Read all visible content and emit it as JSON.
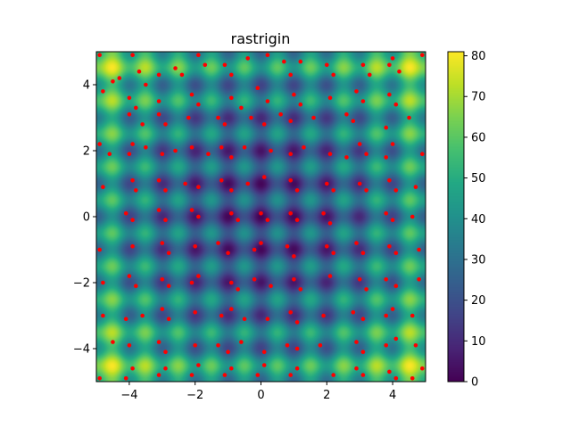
{
  "chart_data": {
    "type": "heatmap",
    "title": "rastrigin",
    "function": "rastrigin",
    "xlim": [
      -5,
      5
    ],
    "ylim": [
      -5,
      5
    ],
    "x_ticks": [
      -4,
      -2,
      0,
      2,
      4
    ],
    "x_tick_labels": [
      "−4",
      "−2",
      "0",
      "2",
      "4"
    ],
    "y_ticks": [
      -4,
      -2,
      0,
      2,
      4
    ],
    "y_tick_labels": [
      "−4",
      "−2",
      "0",
      "2",
      "4"
    ],
    "colormap": "viridis",
    "colorbar": {
      "range": [
        0,
        81
      ],
      "ticks": [
        0,
        10,
        20,
        30,
        40,
        50,
        60,
        70,
        80
      ],
      "tick_labels": [
        "0",
        "10",
        "20",
        "30",
        "40",
        "50",
        "60",
        "70",
        "80"
      ]
    },
    "grid": false,
    "scatter": {
      "name": "",
      "color": "#ff0000",
      "points": [
        [
          -4.9,
          4.9
        ],
        [
          -4.5,
          4.1
        ],
        [
          -4.3,
          4.2
        ],
        [
          -3.9,
          4.9
        ],
        [
          -3.7,
          4.4
        ],
        [
          -3.5,
          4.0
        ],
        [
          -3.1,
          4.3
        ],
        [
          -2.6,
          4.5
        ],
        [
          -2.4,
          4.3
        ],
        [
          -1.9,
          4.9
        ],
        [
          -1.7,
          4.6
        ],
        [
          -1.1,
          4.6
        ],
        [
          -0.9,
          4.3
        ],
        [
          -0.4,
          4.8
        ],
        [
          0.2,
          4.9
        ],
        [
          0.7,
          4.7
        ],
        [
          0.9,
          4.3
        ],
        [
          1.2,
          4.7
        ],
        [
          2.0,
          4.6
        ],
        [
          2.2,
          4.3
        ],
        [
          3.1,
          4.6
        ],
        [
          3.3,
          4.3
        ],
        [
          3.9,
          4.6
        ],
        [
          4.0,
          4.8
        ],
        [
          4.2,
          4.4
        ],
        [
          4.9,
          4.9
        ],
        [
          -4.8,
          3.8
        ],
        [
          -4.0,
          3.6
        ],
        [
          -3.8,
          3.3
        ],
        [
          -3.1,
          3.5
        ],
        [
          -2.1,
          3.7
        ],
        [
          -1.9,
          3.4
        ],
        [
          -0.9,
          3.6
        ],
        [
          -0.6,
          3.3
        ],
        [
          -0.1,
          3.9
        ],
        [
          0.2,
          3.5
        ],
        [
          1.0,
          3.7
        ],
        [
          1.2,
          3.4
        ],
        [
          2.1,
          3.6
        ],
        [
          2.9,
          3.8
        ],
        [
          3.1,
          3.5
        ],
        [
          3.9,
          3.7
        ],
        [
          4.1,
          3.4
        ],
        [
          -4.0,
          3.1
        ],
        [
          -3.6,
          2.8
        ],
        [
          -3.1,
          3.1
        ],
        [
          -2.9,
          2.8
        ],
        [
          -2.2,
          3.0
        ],
        [
          -1.3,
          3.0
        ],
        [
          -1.1,
          2.8
        ],
        [
          -0.3,
          3.0
        ],
        [
          0.1,
          2.8
        ],
        [
          0.6,
          3.1
        ],
        [
          0.9,
          2.9
        ],
        [
          1.6,
          3.0
        ],
        [
          2.6,
          3.1
        ],
        [
          2.8,
          2.9
        ],
        [
          3.8,
          2.7
        ],
        [
          4.5,
          3.0
        ],
        [
          -4.9,
          2.2
        ],
        [
          -4.6,
          1.9
        ],
        [
          -4.0,
          1.9
        ],
        [
          -3.9,
          2.2
        ],
        [
          -3.5,
          2.1
        ],
        [
          -3.0,
          1.9
        ],
        [
          -2.6,
          2.0
        ],
        [
          -2.1,
          2.1
        ],
        [
          -1.6,
          1.9
        ],
        [
          -1.2,
          2.1
        ],
        [
          -0.9,
          1.8
        ],
        [
          -0.5,
          2.1
        ],
        [
          0.3,
          2.0
        ],
        [
          0.9,
          1.9
        ],
        [
          1.3,
          2.1
        ],
        [
          2.1,
          1.9
        ],
        [
          2.6,
          1.8
        ],
        [
          3.0,
          2.2
        ],
        [
          3.2,
          1.9
        ],
        [
          3.8,
          1.8
        ],
        [
          4.0,
          2.2
        ],
        [
          4.9,
          1.9
        ],
        [
          -4.8,
          0.9
        ],
        [
          -3.9,
          1.1
        ],
        [
          -3.8,
          0.8
        ],
        [
          -3.1,
          1.1
        ],
        [
          -2.9,
          0.8
        ],
        [
          -2.3,
          1.0
        ],
        [
          -1.9,
          0.9
        ],
        [
          -1.2,
          1.1
        ],
        [
          -0.9,
          0.8
        ],
        [
          -0.4,
          1.0
        ],
        [
          0.1,
          1.2
        ],
        [
          0.9,
          1.1
        ],
        [
          1.1,
          0.8
        ],
        [
          2.0,
          1.0
        ],
        [
          2.2,
          0.8
        ],
        [
          3.0,
          1.0
        ],
        [
          3.2,
          0.8
        ],
        [
          3.9,
          1.1
        ],
        [
          4.1,
          0.8
        ],
        [
          4.7,
          0.9
        ],
        [
          -4.1,
          0.1
        ],
        [
          -3.9,
          -0.1
        ],
        [
          -3.1,
          0.2
        ],
        [
          -2.9,
          -0.1
        ],
        [
          -2.1,
          0.2
        ],
        [
          -1.9,
          0.0
        ],
        [
          -0.9,
          0.1
        ],
        [
          -0.7,
          -0.1
        ],
        [
          0.0,
          0.1
        ],
        [
          0.2,
          -0.1
        ],
        [
          0.9,
          0.1
        ],
        [
          1.1,
          -0.1
        ],
        [
          1.9,
          0.1
        ],
        [
          2.1,
          -0.2
        ],
        [
          3.8,
          0.1
        ],
        [
          4.0,
          -0.1
        ],
        [
          4.6,
          0.0
        ],
        [
          -4.9,
          -1.0
        ],
        [
          -3.9,
          -0.9
        ],
        [
          -3.0,
          -0.8
        ],
        [
          -2.8,
          -1.1
        ],
        [
          -2.0,
          -0.9
        ],
        [
          -1.3,
          -0.8
        ],
        [
          -1.0,
          -1.1
        ],
        [
          -0.2,
          -1.0
        ],
        [
          0.0,
          -0.8
        ],
        [
          0.8,
          -0.9
        ],
        [
          1.0,
          -1.2
        ],
        [
          2.0,
          -0.9
        ],
        [
          2.2,
          -1.1
        ],
        [
          2.9,
          -0.8
        ],
        [
          3.1,
          -1.1
        ],
        [
          3.9,
          -0.9
        ],
        [
          4.1,
          -1.1
        ],
        [
          4.8,
          -1.0
        ],
        [
          -4.8,
          -2.0
        ],
        [
          -4.0,
          -1.8
        ],
        [
          -3.8,
          -2.1
        ],
        [
          -3.0,
          -1.9
        ],
        [
          -2.8,
          -2.1
        ],
        [
          -2.1,
          -2.0
        ],
        [
          -1.9,
          -1.8
        ],
        [
          -0.9,
          -2.0
        ],
        [
          -0.7,
          -2.2
        ],
        [
          -0.2,
          -1.9
        ],
        [
          0.3,
          -2.1
        ],
        [
          1.0,
          -1.9
        ],
        [
          1.2,
          -2.2
        ],
        [
          2.1,
          -1.8
        ],
        [
          3.0,
          -1.9
        ],
        [
          3.2,
          -2.2
        ],
        [
          3.8,
          -1.9
        ],
        [
          4.1,
          -2.1
        ],
        [
          4.8,
          -1.9
        ],
        [
          -4.8,
          -3.0
        ],
        [
          -4.1,
          -3.1
        ],
        [
          -3.6,
          -3.0
        ],
        [
          -3.0,
          -2.8
        ],
        [
          -2.8,
          -3.1
        ],
        [
          -2.0,
          -2.9
        ],
        [
          -1.2,
          -3.0
        ],
        [
          -0.9,
          -2.8
        ],
        [
          -0.5,
          -3.1
        ],
        [
          0.2,
          -3.1
        ],
        [
          0.9,
          -2.9
        ],
        [
          1.1,
          -3.2
        ],
        [
          1.9,
          -3.0
        ],
        [
          2.8,
          -2.9
        ],
        [
          3.1,
          -3.1
        ],
        [
          3.8,
          -3.0
        ],
        [
          4.0,
          -2.8
        ],
        [
          4.6,
          -3.0
        ],
        [
          -4.5,
          -3.8
        ],
        [
          -4.0,
          -3.9
        ],
        [
          -3.1,
          -3.8
        ],
        [
          -2.9,
          -4.1
        ],
        [
          -2.0,
          -3.9
        ],
        [
          -1.3,
          -3.9
        ],
        [
          -1.0,
          -4.1
        ],
        [
          -0.6,
          -3.8
        ],
        [
          0.1,
          -4.1
        ],
        [
          0.8,
          -3.9
        ],
        [
          1.1,
          -4.0
        ],
        [
          1.8,
          -3.9
        ],
        [
          2.9,
          -3.8
        ],
        [
          3.1,
          -4.1
        ],
        [
          3.8,
          -3.9
        ],
        [
          4.1,
          -3.7
        ],
        [
          4.7,
          -3.9
        ],
        [
          -4.9,
          -4.9
        ],
        [
          -4.1,
          -4.9
        ],
        [
          -3.9,
          -4.6
        ],
        [
          -3.1,
          -4.8
        ],
        [
          -2.9,
          -4.6
        ],
        [
          -2.1,
          -4.8
        ],
        [
          -1.9,
          -4.5
        ],
        [
          -1.1,
          -4.8
        ],
        [
          -0.9,
          -4.6
        ],
        [
          -0.1,
          -4.8
        ],
        [
          0.1,
          -4.5
        ],
        [
          0.9,
          -4.8
        ],
        [
          1.1,
          -4.6
        ],
        [
          2.2,
          -4.8
        ],
        [
          2.9,
          -4.6
        ],
        [
          3.1,
          -4.8
        ],
        [
          3.9,
          -4.7
        ],
        [
          4.1,
          -4.9
        ],
        [
          4.6,
          -4.9
        ],
        [
          4.9,
          -4.6
        ]
      ]
    }
  }
}
